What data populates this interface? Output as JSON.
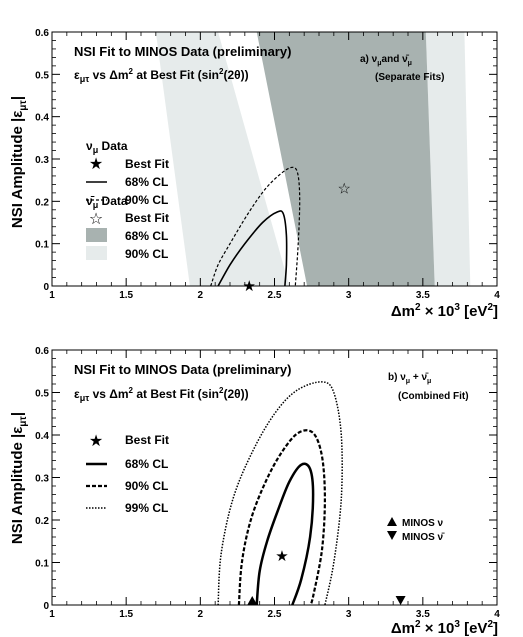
{
  "chart_data": [
    {
      "id": "a",
      "type": "contour",
      "title": "NSI Fit to MINOS  Data (preliminary)",
      "subtitle": "εμτ vs Δm² at Best Fit (sin²(2θ))",
      "tag_line1": "a) νμ and ν̄μ",
      "tag_line2": "(Separate Fits)",
      "xlabel": "Δm² × 10³ [eV²]",
      "ylabel": "NSI Amplitude |εμτ|",
      "xlim": [
        1,
        4
      ],
      "ylim": [
        0,
        0.6
      ],
      "xticks": [
        "1",
        "1.5",
        "2",
        "2.5",
        "3",
        "3.5",
        "4"
      ],
      "yticks": [
        "0",
        "0.1",
        "0.2",
        "0.3",
        "0.4",
        "0.5",
        "0.6"
      ],
      "legend": {
        "nu_header": "νμ Data",
        "nubar_header": "ν̄μ Data",
        "entries": [
          "Best Fit",
          "68% CL",
          "90% CL",
          "Best Fit",
          "68% CL",
          "90% CL"
        ]
      },
      "nu_best_fit": {
        "x": 2.33,
        "y": 0.0
      },
      "nubar_best_fit": {
        "x": 2.97,
        "y": 0.23
      },
      "nu_68": [
        [
          2.12,
          0.0
        ],
        [
          2.2,
          0.05
        ],
        [
          2.3,
          0.1
        ],
        [
          2.42,
          0.15
        ],
        [
          2.52,
          0.175
        ],
        [
          2.56,
          0.17
        ],
        [
          2.58,
          0.12
        ],
        [
          2.58,
          0.05
        ],
        [
          2.57,
          0.0
        ]
      ],
      "nu_90": [
        [
          2.07,
          0.0
        ],
        [
          2.12,
          0.05
        ],
        [
          2.2,
          0.1
        ],
        [
          2.32,
          0.17
        ],
        [
          2.44,
          0.23
        ],
        [
          2.56,
          0.27
        ],
        [
          2.63,
          0.28
        ],
        [
          2.66,
          0.26
        ],
        [
          2.67,
          0.2
        ],
        [
          2.66,
          0.1
        ],
        [
          2.64,
          0.0
        ]
      ],
      "nubar_68": [
        [
          1.93,
          0.6
        ],
        [
          2.38,
          0.6
        ],
        [
          2.72,
          0.0
        ],
        [
          3.58,
          0.0
        ],
        [
          3.52,
          0.6
        ]
      ],
      "nubar_90": [
        [
          1.7,
          0.6
        ],
        [
          2.0,
          0.6
        ],
        [
          2.0,
          0.6
        ],
        [
          2.6,
          0.0
        ],
        [
          2.6,
          0.0
        ],
        [
          3.8,
          0.0
        ],
        [
          3.1,
          0.6
        ]
      ],
      "nubar_90_bands": [
        [
          [
            1.7,
            0.6
          ],
          [
            2.12,
            0.6
          ],
          [
            2.6,
            0.0
          ],
          [
            1.93,
            0.0
          ]
        ],
        [
          [
            3.52,
            0.6
          ],
          [
            3.78,
            0.6
          ],
          [
            3.82,
            0.0
          ],
          [
            3.58,
            0.0
          ]
        ]
      ]
    },
    {
      "id": "b",
      "type": "contour",
      "title": "NSI Fit to MINOS  Data (preliminary)",
      "subtitle": "εμτ vs Δm² at Best Fit (sin²(2θ))",
      "tag_line1": "b) νμ + ν̄μ",
      "tag_line2": "(Combined Fit)",
      "xlabel": "Δm² × 10³ [eV²]",
      "ylabel": "NSI Amplitude |εμτ|",
      "xlim": [
        1,
        4
      ],
      "ylim": [
        0,
        0.6
      ],
      "xticks": [
        "1",
        "1.5",
        "2",
        "2.5",
        "3",
        "3.5",
        "4"
      ],
      "yticks": [
        "0",
        "0.1",
        "0.2",
        "0.3",
        "0.4",
        "0.5",
        "0.6"
      ],
      "legend": {
        "entries": [
          "Best Fit",
          "68% CL",
          "90% CL",
          "99% CL"
        ]
      },
      "marker_legend": [
        "MINOS ν",
        "MINOS ν̄"
      ],
      "best_fit": {
        "x": 2.55,
        "y": 0.115
      },
      "minos_nu": {
        "x": 2.35,
        "y": 0.0
      },
      "minos_nubar": {
        "x": 3.35,
        "y": 0.0
      },
      "cl68": [
        [
          2.38,
          0.0
        ],
        [
          2.4,
          0.08
        ],
        [
          2.45,
          0.15
        ],
        [
          2.52,
          0.22
        ],
        [
          2.6,
          0.29
        ],
        [
          2.68,
          0.33
        ],
        [
          2.74,
          0.32
        ],
        [
          2.76,
          0.26
        ],
        [
          2.74,
          0.16
        ],
        [
          2.68,
          0.06
        ],
        [
          2.62,
          0.0
        ]
      ],
      "cl90": [
        [
          2.26,
          0.0
        ],
        [
          2.28,
          0.1
        ],
        [
          2.34,
          0.2
        ],
        [
          2.44,
          0.29
        ],
        [
          2.55,
          0.36
        ],
        [
          2.66,
          0.405
        ],
        [
          2.76,
          0.405
        ],
        [
          2.82,
          0.35
        ],
        [
          2.84,
          0.25
        ],
        [
          2.82,
          0.13
        ],
        [
          2.76,
          0.02
        ],
        [
          2.74,
          0.0
        ]
      ],
      "cl99": [
        [
          2.12,
          0.0
        ],
        [
          2.14,
          0.12
        ],
        [
          2.22,
          0.25
        ],
        [
          2.35,
          0.36
        ],
        [
          2.5,
          0.45
        ],
        [
          2.65,
          0.505
        ],
        [
          2.82,
          0.525
        ],
        [
          2.9,
          0.5
        ],
        [
          2.95,
          0.4
        ],
        [
          2.95,
          0.25
        ],
        [
          2.9,
          0.1
        ],
        [
          2.84,
          0.0
        ]
      ]
    }
  ]
}
